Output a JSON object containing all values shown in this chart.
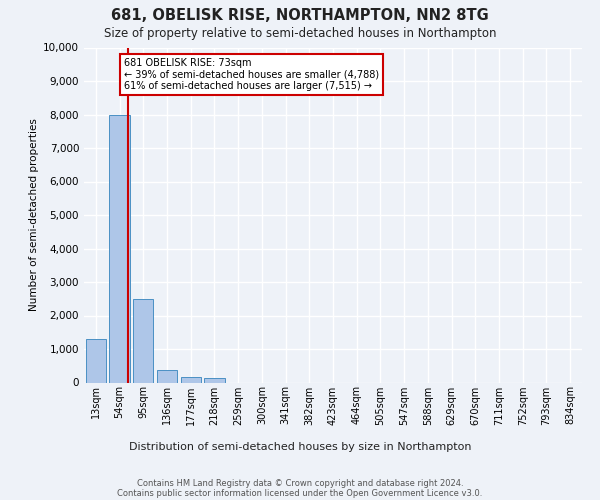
{
  "title": "681, OBELISK RISE, NORTHAMPTON, NN2 8TG",
  "subtitle": "Size of property relative to semi-detached houses in Northampton",
  "xlabel": "Distribution of semi-detached houses by size in Northampton",
  "ylabel": "Number of semi-detached properties",
  "footer_line1": "Contains HM Land Registry data © Crown copyright and database right 2024.",
  "footer_line2": "Contains public sector information licensed under the Open Government Licence v3.0.",
  "bar_labels": [
    "13sqm",
    "54sqm",
    "95sqm",
    "136sqm",
    "177sqm",
    "218sqm",
    "259sqm",
    "300sqm",
    "341sqm",
    "382sqm",
    "423sqm",
    "464sqm",
    "505sqm",
    "547sqm",
    "588sqm",
    "629sqm",
    "670sqm",
    "711sqm",
    "752sqm",
    "793sqm",
    "834sqm"
  ],
  "bar_values": [
    1300,
    8000,
    2500,
    375,
    150,
    120,
    0,
    0,
    0,
    0,
    0,
    0,
    0,
    0,
    0,
    0,
    0,
    0,
    0,
    0,
    0
  ],
  "bar_color": "#aec6e8",
  "bar_edge_color": "#4a90c4",
  "property_label": "681 OBELISK RISE: 73sqm",
  "pct_smaller": 39,
  "n_smaller": 4788,
  "pct_larger": 61,
  "n_larger": 7515,
  "vline_color": "#cc0000",
  "vline_x": 1.35,
  "ylim": [
    0,
    10000
  ],
  "yticks": [
    0,
    1000,
    2000,
    3000,
    4000,
    5000,
    6000,
    7000,
    8000,
    9000,
    10000
  ],
  "annotation_box_color": "#ffffff",
  "annotation_box_edge": "#cc0000",
  "bg_color": "#eef2f8",
  "grid_color": "#ffffff"
}
